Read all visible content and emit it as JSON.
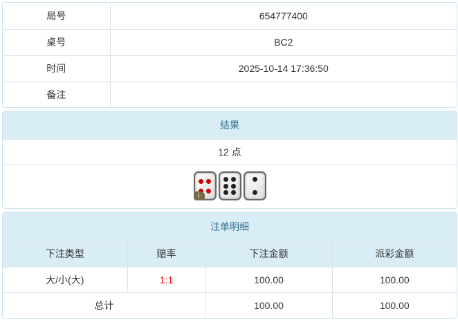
{
  "info": [
    {
      "label": "局号",
      "value": "654777400"
    },
    {
      "label": "桌号",
      "value": "BC2"
    },
    {
      "label": "时间",
      "value": "2025-10-14 17:36:50"
    },
    {
      "label": "备注",
      "value": ""
    }
  ],
  "result": {
    "title": "结果",
    "points": "12 点",
    "dice": [
      4,
      6,
      2
    ],
    "info_badge": "i"
  },
  "bets": {
    "title": "注单明细",
    "headers": [
      "下注类型",
      "赔率",
      "下注金额",
      "派彩金额"
    ],
    "rows": [
      {
        "type": "大/小(大)",
        "odds": "1:1",
        "amount": "100.00",
        "payout": "100.00"
      }
    ],
    "total": {
      "label": "总计",
      "amount": "100.00",
      "payout": "100.00"
    }
  },
  "colors": {
    "header_bg": "#d9edf7",
    "header_text": "#31708f",
    "odds": "#e00000"
  }
}
